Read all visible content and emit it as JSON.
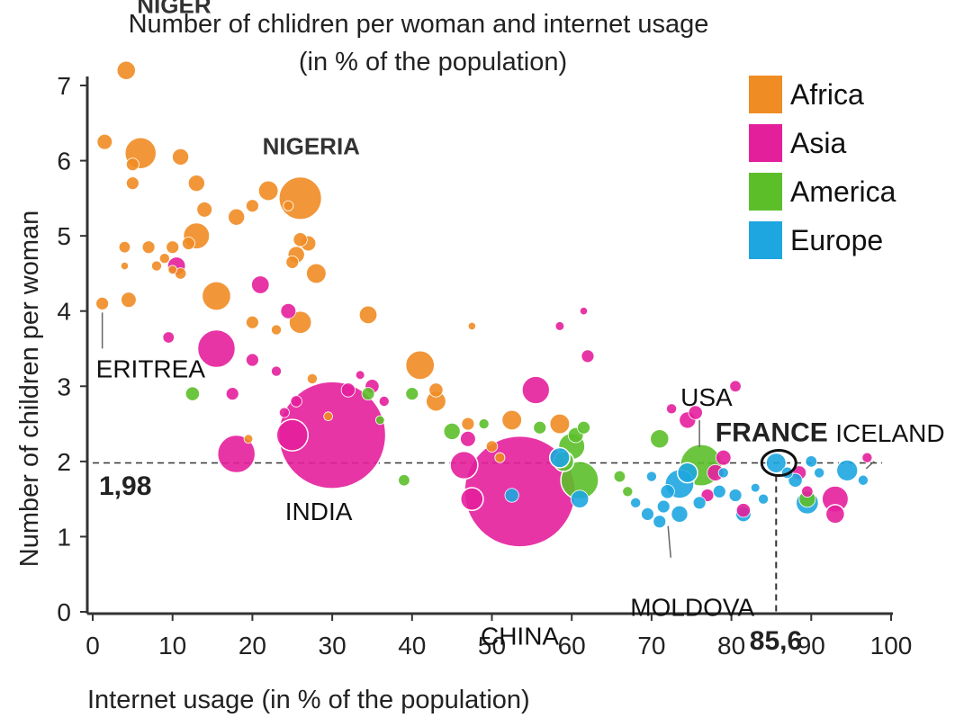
{
  "chart_data": {
    "type": "scatter",
    "title": "Number of chlidren per woman and internet usage",
    "subtitle": "(in % of the population)",
    "xlabel": "Internet usage (in % of the population)",
    "ylabel": "Number of children per woman",
    "xlim": [
      0,
      100
    ],
    "ylim": [
      0,
      7
    ],
    "x_ticks": [
      "0",
      "10",
      "20",
      "30",
      "40",
      "50",
      "60",
      "70",
      "80",
      "90",
      "100"
    ],
    "y_ticks": [
      "0",
      "1",
      "2",
      "3",
      "4",
      "5",
      "6",
      "7"
    ],
    "legend": {
      "placement": "top-right",
      "entries": [
        {
          "label": "Africa",
          "color": "#ef8c23"
        },
        {
          "label": "Asia",
          "color": "#e41f9c"
        },
        {
          "label": "America",
          "color": "#5cbf2a"
        },
        {
          "label": "Europe",
          "color": "#1ea6e0"
        }
      ]
    },
    "reference_lines": {
      "y": 1.98,
      "x": 85.6,
      "y_label": "1,98",
      "x_label": "85,6"
    },
    "annotations": [
      {
        "text": "NIGER",
        "x": 4.2,
        "y": 7.2
      },
      {
        "text": "NIGERIA",
        "x": 26,
        "y": 5.5
      },
      {
        "text": "ERITREA",
        "x": 1.2,
        "y": 4.1
      },
      {
        "text": "INDIA",
        "x": 30,
        "y": 2.3
      },
      {
        "text": "CHINA",
        "x": 53.5,
        "y": 1.6
      },
      {
        "text": "MOLDOVA",
        "x": 71.5,
        "y": 1.2
      },
      {
        "text": "USA",
        "x": 76,
        "y": 1.95
      },
      {
        "text": "FRANCE",
        "x": 85.6,
        "y": 1.98
      },
      {
        "text": "ICELAND",
        "x": 98,
        "y": 2.0
      }
    ],
    "series": [
      {
        "name": "Africa",
        "points": [
          {
            "x": 4.2,
            "y": 7.2,
            "s": 1.5
          },
          {
            "x": 1.5,
            "y": 6.25,
            "s": 1.2
          },
          {
            "x": 6,
            "y": 6.1,
            "s": 2.5
          },
          {
            "x": 5,
            "y": 5.95,
            "s": 1
          },
          {
            "x": 11,
            "y": 6.05,
            "s": 1.3
          },
          {
            "x": 5,
            "y": 5.7,
            "s": 1
          },
          {
            "x": 13,
            "y": 5.7,
            "s": 1.3
          },
          {
            "x": 22,
            "y": 5.6,
            "s": 1.6
          },
          {
            "x": 26,
            "y": 5.5,
            "s": 3.4
          },
          {
            "x": 24.5,
            "y": 5.4,
            "s": 0.8
          },
          {
            "x": 14,
            "y": 5.35,
            "s": 1.2
          },
          {
            "x": 18,
            "y": 5.25,
            "s": 1.3
          },
          {
            "x": 20,
            "y": 5.4,
            "s": 1
          },
          {
            "x": 13,
            "y": 5.0,
            "s": 2.1
          },
          {
            "x": 12,
            "y": 4.9,
            "s": 1
          },
          {
            "x": 26,
            "y": 4.95,
            "s": 1.1
          },
          {
            "x": 27,
            "y": 4.9,
            "s": 1.2
          },
          {
            "x": 25.5,
            "y": 4.75,
            "s": 1.3
          },
          {
            "x": 25,
            "y": 4.65,
            "s": 1
          },
          {
            "x": 4,
            "y": 4.85,
            "s": 0.9
          },
          {
            "x": 7,
            "y": 4.85,
            "s": 1
          },
          {
            "x": 10,
            "y": 4.85,
            "s": 1
          },
          {
            "x": 9,
            "y": 4.7,
            "s": 0.8
          },
          {
            "x": 8,
            "y": 4.6,
            "s": 0.8
          },
          {
            "x": 4,
            "y": 4.6,
            "s": 0.6
          },
          {
            "x": 10,
            "y": 4.55,
            "s": 0.7
          },
          {
            "x": 11,
            "y": 4.5,
            "s": 0.9
          },
          {
            "x": 28,
            "y": 4.5,
            "s": 1.6
          },
          {
            "x": 15.5,
            "y": 4.2,
            "s": 2.3
          },
          {
            "x": 4.5,
            "y": 4.15,
            "s": 1.2
          },
          {
            "x": 1.2,
            "y": 4.1,
            "s": 1
          },
          {
            "x": 34.5,
            "y": 3.95,
            "s": 1.4
          },
          {
            "x": 20,
            "y": 3.85,
            "s": 1
          },
          {
            "x": 26,
            "y": 3.85,
            "s": 1.8
          },
          {
            "x": 23,
            "y": 3.75,
            "s": 0.8
          },
          {
            "x": 41,
            "y": 3.28,
            "s": 2.3
          },
          {
            "x": 43,
            "y": 2.95,
            "s": 1.1
          },
          {
            "x": 43,
            "y": 2.8,
            "s": 1.6
          },
          {
            "x": 52.5,
            "y": 2.55,
            "s": 1.6
          },
          {
            "x": 58.5,
            "y": 2.5,
            "s": 1.6
          },
          {
            "x": 47,
            "y": 2.5,
            "s": 1
          },
          {
            "x": 50,
            "y": 2.2,
            "s": 0.9
          },
          {
            "x": 51,
            "y": 2.05,
            "s": 0.8
          },
          {
            "x": 47.5,
            "y": 3.8,
            "s": 0.6
          },
          {
            "x": 19.5,
            "y": 2.3,
            "s": 0.7
          },
          {
            "x": 27.5,
            "y": 3.1,
            "s": 0.8
          },
          {
            "x": 29.5,
            "y": 2.6,
            "s": 0.7
          }
        ]
      },
      {
        "name": "Asia",
        "points": [
          {
            "x": 30,
            "y": 2.35,
            "s": 8.5
          },
          {
            "x": 53.5,
            "y": 1.6,
            "s": 8.8
          },
          {
            "x": 15.5,
            "y": 3.5,
            "s": 3
          },
          {
            "x": 18,
            "y": 2.1,
            "s": 3
          },
          {
            "x": 25,
            "y": 2.35,
            "s": 2.5
          },
          {
            "x": 21,
            "y": 4.35,
            "s": 1.4
          },
          {
            "x": 10.5,
            "y": 4.6,
            "s": 1.4
          },
          {
            "x": 24.5,
            "y": 4.0,
            "s": 1.2
          },
          {
            "x": 55.5,
            "y": 2.95,
            "s": 2.2
          },
          {
            "x": 47,
            "y": 2.3,
            "s": 1.2
          },
          {
            "x": 46.5,
            "y": 1.95,
            "s": 2.2
          },
          {
            "x": 47.5,
            "y": 1.5,
            "s": 1.8
          },
          {
            "x": 32,
            "y": 2.95,
            "s": 1.1
          },
          {
            "x": 35,
            "y": 3.0,
            "s": 1.1
          },
          {
            "x": 25.5,
            "y": 2.8,
            "s": 0.9
          },
          {
            "x": 33.5,
            "y": 3.15,
            "s": 0.7
          },
          {
            "x": 9.5,
            "y": 3.65,
            "s": 0.9
          },
          {
            "x": 20,
            "y": 3.35,
            "s": 1
          },
          {
            "x": 23,
            "y": 3.2,
            "s": 0.8
          },
          {
            "x": 17.5,
            "y": 2.9,
            "s": 1
          },
          {
            "x": 24,
            "y": 2.65,
            "s": 0.8
          },
          {
            "x": 62,
            "y": 3.4,
            "s": 1
          },
          {
            "x": 58.5,
            "y": 3.8,
            "s": 0.7
          },
          {
            "x": 61.5,
            "y": 4.0,
            "s": 0.6
          },
          {
            "x": 74.5,
            "y": 2.55,
            "s": 1.3
          },
          {
            "x": 75.5,
            "y": 2.65,
            "s": 1.1
          },
          {
            "x": 80.5,
            "y": 3.0,
            "s": 0.9
          },
          {
            "x": 72.5,
            "y": 2.7,
            "s": 0.8
          },
          {
            "x": 79,
            "y": 2.05,
            "s": 1.2
          },
          {
            "x": 78,
            "y": 1.85,
            "s": 1.3
          },
          {
            "x": 77,
            "y": 1.55,
            "s": 1
          },
          {
            "x": 81.5,
            "y": 1.35,
            "s": 1.1
          },
          {
            "x": 93,
            "y": 1.5,
            "s": 2.1
          },
          {
            "x": 93,
            "y": 1.3,
            "s": 1.5
          },
          {
            "x": 88.5,
            "y": 1.85,
            "s": 1.1
          },
          {
            "x": 97,
            "y": 2.05,
            "s": 0.8
          },
          {
            "x": 89.5,
            "y": 1.6,
            "s": 0.9
          },
          {
            "x": 36.5,
            "y": 2.8,
            "s": 0.8
          }
        ]
      },
      {
        "name": "America",
        "points": [
          {
            "x": 76.2,
            "y": 1.95,
            "s": 3.3
          },
          {
            "x": 61,
            "y": 1.75,
            "s": 3
          },
          {
            "x": 60,
            "y": 2.2,
            "s": 2.1
          },
          {
            "x": 59,
            "y": 2.0,
            "s": 1.6
          },
          {
            "x": 60.5,
            "y": 2.35,
            "s": 1.2
          },
          {
            "x": 56,
            "y": 2.45,
            "s": 1
          },
          {
            "x": 61.5,
            "y": 2.45,
            "s": 1
          },
          {
            "x": 45,
            "y": 2.4,
            "s": 1.3
          },
          {
            "x": 40,
            "y": 2.9,
            "s": 1
          },
          {
            "x": 12.5,
            "y": 2.9,
            "s": 1.1
          },
          {
            "x": 34.5,
            "y": 2.9,
            "s": 1
          },
          {
            "x": 39,
            "y": 1.75,
            "s": 0.9
          },
          {
            "x": 71,
            "y": 2.3,
            "s": 1.5
          },
          {
            "x": 66,
            "y": 1.8,
            "s": 0.9
          },
          {
            "x": 67,
            "y": 1.6,
            "s": 0.8
          },
          {
            "x": 89.5,
            "y": 1.5,
            "s": 1.3
          },
          {
            "x": 36,
            "y": 2.55,
            "s": 0.7
          },
          {
            "x": 49,
            "y": 2.5,
            "s": 0.8
          }
        ]
      },
      {
        "name": "Europe",
        "points": [
          {
            "x": 73.5,
            "y": 1.7,
            "s": 2.3
          },
          {
            "x": 74.5,
            "y": 1.85,
            "s": 1.6
          },
          {
            "x": 72,
            "y": 1.6,
            "s": 1.1
          },
          {
            "x": 71.5,
            "y": 1.4,
            "s": 1
          },
          {
            "x": 73.5,
            "y": 1.3,
            "s": 1.3
          },
          {
            "x": 71,
            "y": 1.2,
            "s": 1
          },
          {
            "x": 69.5,
            "y": 1.3,
            "s": 1
          },
          {
            "x": 70,
            "y": 1.8,
            "s": 0.8
          },
          {
            "x": 76,
            "y": 1.45,
            "s": 1
          },
          {
            "x": 78.5,
            "y": 1.6,
            "s": 1
          },
          {
            "x": 80.5,
            "y": 1.55,
            "s": 1
          },
          {
            "x": 81.5,
            "y": 1.3,
            "s": 1.2
          },
          {
            "x": 85.6,
            "y": 1.98,
            "s": 1.6
          },
          {
            "x": 89.5,
            "y": 1.45,
            "s": 1.8
          },
          {
            "x": 88,
            "y": 1.75,
            "s": 1.1
          },
          {
            "x": 90,
            "y": 2.0,
            "s": 0.9
          },
          {
            "x": 87,
            "y": 1.85,
            "s": 0.9
          },
          {
            "x": 91,
            "y": 1.85,
            "s": 0.8
          },
          {
            "x": 94.5,
            "y": 1.88,
            "s": 1.7
          },
          {
            "x": 96.5,
            "y": 1.75,
            "s": 0.8
          },
          {
            "x": 61,
            "y": 1.5,
            "s": 1.4
          },
          {
            "x": 58.5,
            "y": 2.05,
            "s": 1.6
          },
          {
            "x": 52.5,
            "y": 1.55,
            "s": 1.1
          },
          {
            "x": 84,
            "y": 1.5,
            "s": 0.8
          },
          {
            "x": 68,
            "y": 1.45,
            "s": 0.8
          },
          {
            "x": 79,
            "y": 1.85,
            "s": 0.8
          },
          {
            "x": 83,
            "y": 1.65,
            "s": 0.7
          }
        ]
      }
    ]
  }
}
